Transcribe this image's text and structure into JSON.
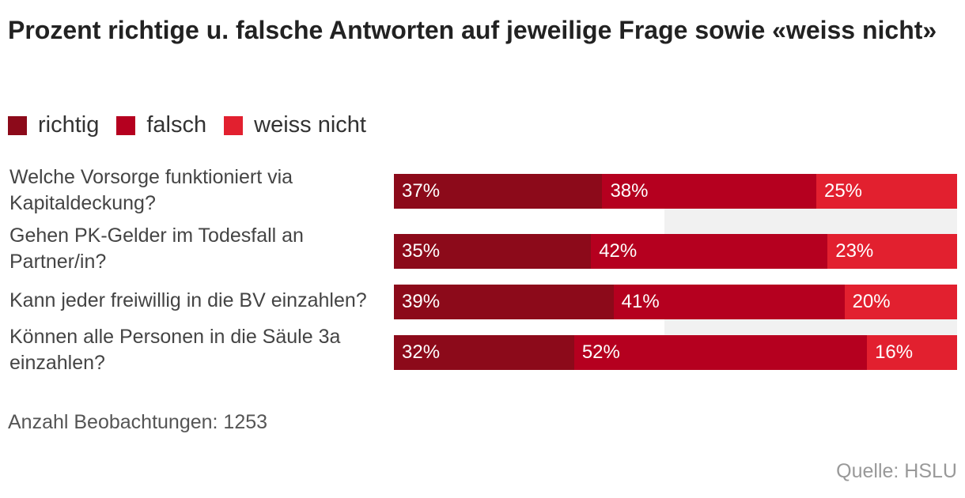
{
  "chart_data": {
    "type": "bar",
    "orientation": "horizontal",
    "stacked": true,
    "title": "Prozent richtige u. falsche Antworten auf jeweilige Frage sowie «weiss nicht»",
    "categories": [
      "Welche Vorsorge funktioniert via Kapitaldeckung?",
      "Gehen PK-Gelder im Todesfall an Partner/in?",
      "Kann jeder freiwillig in die BV einzahlen?",
      "Können alle Personen in die Säule 3a einzahlen?"
    ],
    "series": [
      {
        "name": "richtig",
        "color": "#8c0a1a",
        "values": [
          37,
          35,
          39,
          32
        ]
      },
      {
        "name": "falsch",
        "color": "#b5001f",
        "values": [
          38,
          42,
          41,
          52
        ]
      },
      {
        "name": "weiss nicht",
        "color": "#e2202f",
        "values": [
          25,
          23,
          20,
          16
        ]
      }
    ],
    "value_suffix": "%",
    "xlim": [
      0,
      100
    ],
    "legend": "top-left",
    "footnote": "Anzahl Beobachtungen: 1253",
    "source": "Quelle: HSLU"
  }
}
